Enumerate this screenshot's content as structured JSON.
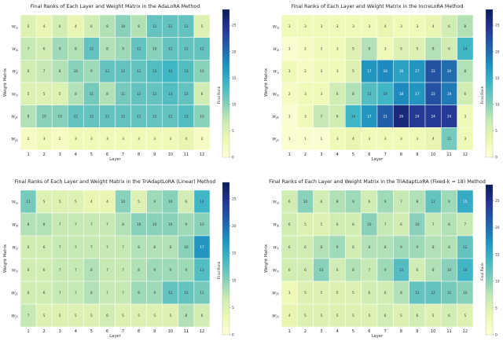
{
  "colorscale": [
    "#ffffd9",
    "#edf8b1",
    "#c7e9b4",
    "#7fcdbb",
    "#41b6c4",
    "#1d91c0",
    "#225ea8",
    "#253494",
    "#081d58"
  ],
  "chart_data": [
    {
      "type": "heatmap",
      "title": "Final Ranks of Each Layer and Weight Matrix in the AdaLoRA Method",
      "xlabel": "Layer",
      "ylabel": "Weight Matrix",
      "colorbar_label": "Final Rank",
      "x": [
        "1",
        "2",
        "3",
        "4",
        "5",
        "6",
        "7",
        "8",
        "9",
        "10",
        "11",
        "12"
      ],
      "y": [
        "W_Q",
        "W_K",
        "W_V",
        "W_O",
        "W_f1",
        "W_f2"
      ],
      "y_display": [
        [
          "W",
          "Q"
        ],
        [
          "W",
          "K"
        ],
        [
          "W",
          "V"
        ],
        [
          "W",
          "O"
        ],
        [
          "W",
          "f1"
        ],
        [
          "W",
          "f2"
        ]
      ],
      "zlim": [
        0,
        28
      ],
      "colorbar_ticks": [
        0,
        5,
        10,
        15,
        20,
        25
      ],
      "values": [
        [
          5,
          4,
          6,
          4,
          6,
          8,
          10,
          8,
          12,
          12,
          12,
          5
        ],
        [
          7,
          6,
          9,
          8,
          12,
          8,
          9,
          12,
          10,
          12,
          12,
          12
        ],
        [
          6,
          7,
          8,
          10,
          9,
          12,
          12,
          12,
          13,
          14,
          13,
          10
        ],
        [
          5,
          5,
          5,
          8,
          11,
          8,
          11,
          12,
          12,
          13,
          12,
          6
        ],
        [
          8,
          10,
          10,
          12,
          12,
          12,
          12,
          12,
          12,
          12,
          13,
          10
        ],
        [
          2,
          3,
          2,
          3,
          3,
          3,
          3,
          3,
          3,
          3,
          4,
          2
        ]
      ]
    },
    {
      "type": "heatmap",
      "title": "Final Ranks of Each Layer and Weight Matrix in the IncreLoRA Method",
      "xlabel": "Layer",
      "ylabel": "Weight Matrix",
      "colorbar_label": "Final Rank",
      "x": [
        "1",
        "2",
        "3",
        "4",
        "5",
        "6",
        "7",
        "8",
        "9",
        "10",
        "11",
        "12"
      ],
      "y": [
        "W_Q",
        "W_K",
        "W_V",
        "W_O",
        "W_f1",
        "W_f2"
      ],
      "y_display": [
        [
          "W",
          "Q"
        ],
        [
          "W",
          "K"
        ],
        [
          "W",
          "V"
        ],
        [
          "W",
          "O"
        ],
        [
          "W",
          "f1"
        ],
        [
          "W",
          "f2"
        ]
      ],
      "zlim": [
        0,
        28
      ],
      "colorbar_ticks": [
        0,
        5,
        10,
        15,
        20,
        25
      ],
      "values": [
        [
          3,
          3,
          3,
          3,
          3,
          3,
          4,
          3,
          3,
          4,
          6,
          8
        ],
        [
          1,
          2,
          3,
          3,
          5,
          8,
          3,
          5,
          5,
          8,
          6,
          14
        ],
        [
          3,
          2,
          3,
          3,
          5,
          17,
          18,
          16,
          17,
          22,
          20,
          8
        ],
        [
          2,
          3,
          3,
          6,
          8,
          13,
          14,
          18,
          17,
          22,
          19,
          6
        ],
        [
          1,
          3,
          7,
          6,
          14,
          17,
          21,
          26,
          24,
          24,
          24,
          3
        ],
        [
          1,
          1,
          1,
          3,
          4,
          3,
          3,
          3,
          3,
          4,
          11,
          3
        ]
      ]
    },
    {
      "type": "heatmap",
      "title": "Final Ranks of Each Layer and Weight Matrix in the TriAdaptLoRA (Linear) Method",
      "xlabel": "Layer",
      "ylabel": "Weight Matrix",
      "colorbar_label": "Final Rank",
      "x": [
        "1",
        "2",
        "3",
        "4",
        "5",
        "6",
        "7",
        "8",
        "9",
        "10",
        "11",
        "12"
      ],
      "y": [
        "W_Q",
        "W_K",
        "W_V",
        "W_O",
        "W_f1",
        "W_f2"
      ],
      "y_display": [
        [
          "W",
          "Q"
        ],
        [
          "W",
          "K"
        ],
        [
          "W",
          "V"
        ],
        [
          "W",
          "O"
        ],
        [
          "W",
          "f1"
        ],
        [
          "W",
          "f2"
        ]
      ],
      "zlim": [
        0,
        28
      ],
      "colorbar_ticks": [
        0,
        5,
        10,
        15,
        20,
        25
      ],
      "values": [
        [
          11,
          5,
          5,
          5,
          4,
          4,
          10,
          5,
          9,
          10,
          6,
          14
        ],
        [
          8,
          8,
          7,
          7,
          7,
          7,
          8,
          10,
          10,
          10,
          9,
          10
        ],
        [
          6,
          6,
          7,
          7,
          7,
          7,
          7,
          8,
          8,
          8,
          10,
          17
        ],
        [
          6,
          6,
          7,
          7,
          8,
          7,
          7,
          8,
          9,
          9,
          9,
          13
        ],
        [
          6,
          6,
          7,
          7,
          8,
          7,
          7,
          9,
          9,
          12,
          12,
          11
        ],
        [
          7,
          5,
          5,
          5,
          5,
          6,
          5,
          5,
          5,
          5,
          8,
          6
        ]
      ]
    },
    {
      "type": "heatmap",
      "title": "Final Ranks of Each Layer and Weight Matrix in the TriAdaptLoRA (Fixed-k = 18) Method",
      "xlabel": "Layer",
      "ylabel": "Weight Matrix",
      "colorbar_label": "Final Rank",
      "x": [
        "1",
        "2",
        "3",
        "4",
        "5",
        "6",
        "7",
        "8",
        "9",
        "10",
        "11",
        "12"
      ],
      "y": [
        "W_Q",
        "W_K",
        "W_V",
        "W_O",
        "W_f1",
        "W_f2"
      ],
      "y_display": [
        [
          "W",
          "Q"
        ],
        [
          "W",
          "K"
        ],
        [
          "W",
          "V"
        ],
        [
          "W",
          "O"
        ],
        [
          "W",
          "f1"
        ],
        [
          "W",
          "f2"
        ]
      ],
      "zlim": [
        0,
        28
      ],
      "colorbar_ticks": [
        0,
        5,
        10,
        15,
        20,
        25
      ],
      "values": [
        [
          6,
          10,
          6,
          8,
          9,
          6,
          9,
          7,
          8,
          12,
          9,
          15
        ],
        [
          6,
          5,
          5,
          6,
          6,
          10,
          7,
          6,
          10,
          7,
          8,
          7
        ],
        [
          6,
          6,
          8,
          9,
          6,
          8,
          8,
          9,
          9,
          8,
          8,
          12
        ],
        [
          6,
          6,
          10,
          6,
          8,
          7,
          9,
          13,
          6,
          8,
          10,
          14
        ],
        [
          3,
          5,
          5,
          5,
          5,
          6,
          6,
          8,
          12,
          12,
          11,
          10
        ],
        [
          4,
          5,
          5,
          5,
          5,
          5,
          6,
          5,
          6,
          5,
          6,
          5
        ]
      ]
    }
  ]
}
